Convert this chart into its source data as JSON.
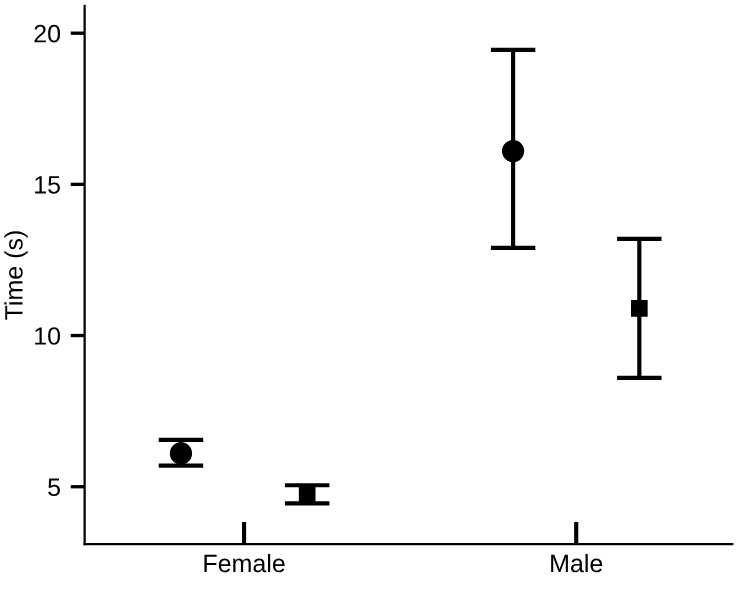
{
  "chart_data": {
    "type": "scatter",
    "ylabel": "Time (s)",
    "categories": [
      "Female",
      "Male"
    ],
    "series": [
      {
        "color": "#000000",
        "marker": "circle",
        "values": [
          6.1,
          16.1
        ],
        "errors": [
          [
            5.7,
            6.55
          ],
          [
            12.9,
            19.45
          ]
        ]
      },
      {
        "color": "#000000",
        "marker": "square",
        "values": [
          4.75,
          10.9
        ],
        "errors": [
          [
            4.45,
            5.05
          ],
          [
            8.6,
            13.2
          ]
        ]
      }
    ],
    "ylim": [
      3.1,
      20.9
    ],
    "yticks": [
      5,
      10,
      15,
      20
    ],
    "grid": false,
    "legend": false
  }
}
